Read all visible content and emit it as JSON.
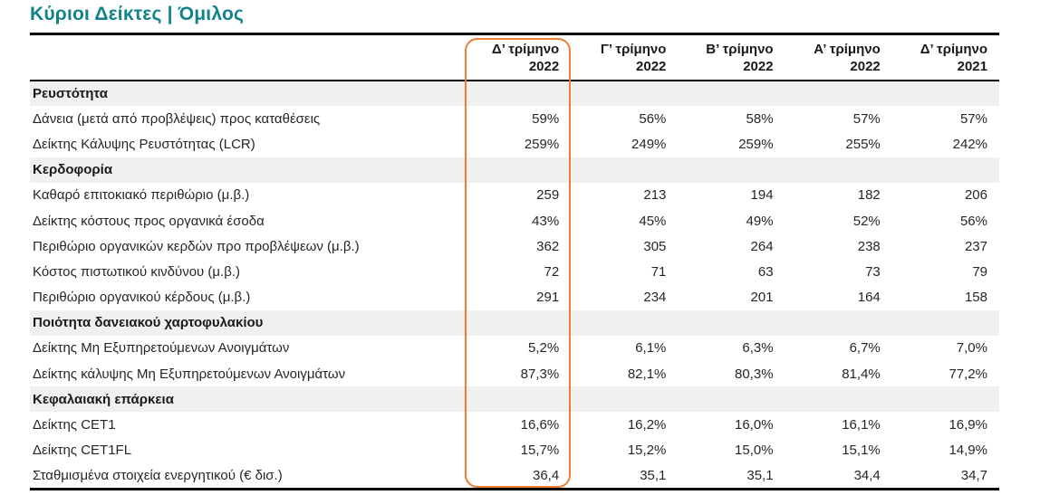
{
  "page": {
    "title": "Κύριοι Δείκτες | Όμιλος"
  },
  "colors": {
    "title_teal": "#11818B",
    "highlight_orange": "#ED7D31",
    "section_row_bg": "#F0F0F0",
    "rule_black": "#000000",
    "body_text": "#262626"
  },
  "table": {
    "columns": [
      {
        "period": "Δ’ τρίμηνο",
        "year": "2022"
      },
      {
        "period": "Γ’ τρίμηνο",
        "year": "2022"
      },
      {
        "period": "Β’ τρίμηνο",
        "year": "2022"
      },
      {
        "period": "Α’ τρίμηνο",
        "year": "2022"
      },
      {
        "period": "Δ’ τρίμηνο",
        "year": "2021"
      }
    ],
    "highlighted_column": "Δ’ τρίμηνο 2022",
    "rows": [
      {
        "type": "section",
        "label": "Ρευστότητα"
      },
      {
        "type": "data",
        "label": "Δάνεια (μετά από προβλέψεις) προς καταθέσεις",
        "values": [
          "59%",
          "56%",
          "58%",
          "57%",
          "57%"
        ]
      },
      {
        "type": "data",
        "label": "Δείκτης Κάλυψης Ρευστότητας (LCR)",
        "values": [
          "259%",
          "249%",
          "259%",
          "255%",
          "242%"
        ]
      },
      {
        "type": "section",
        "label": "Κερδοφορία"
      },
      {
        "type": "data",
        "label": "Καθαρό επιτοκιακό περιθώριο (μ.β.)",
        "values": [
          "259",
          "213",
          "194",
          "182",
          "206"
        ]
      },
      {
        "type": "data",
        "label": "Δείκτης κόστους προς οργανικά έσοδα",
        "values": [
          "43%",
          "45%",
          "49%",
          "52%",
          "56%"
        ]
      },
      {
        "type": "data",
        "label": "Περιθώριο οργανικών κερδών προ προβλέψεων (μ.β.)",
        "values": [
          "362",
          "305",
          "264",
          "238",
          "237"
        ]
      },
      {
        "type": "data",
        "label": "Κόστος πιστωτικού κινδύνου (μ.β.)",
        "values": [
          "72",
          "71",
          "63",
          "73",
          "79"
        ]
      },
      {
        "type": "data",
        "label": "Περιθώριο οργανικού κέρδους (μ.β.)",
        "values": [
          "291",
          "234",
          "201",
          "164",
          "158"
        ]
      },
      {
        "type": "section",
        "label": "Ποιότητα δανειακού χαρτοφυλακίου"
      },
      {
        "type": "data",
        "label": "Δείκτης Μη Εξυπηρετούμενων Ανοιγμάτων",
        "values": [
          "5,2%",
          "6,1%",
          "6,3%",
          "6,7%",
          "7,0%"
        ]
      },
      {
        "type": "data",
        "label": "Δείκτης κάλυψης Μη Εξυπηρετούμενων Ανοιγμάτων",
        "values": [
          "87,3%",
          "82,1%",
          "80,3%",
          "81,4%",
          "77,2%"
        ]
      },
      {
        "type": "section",
        "label": "Κεφαλαιακή επάρκεια"
      },
      {
        "type": "data",
        "label": "Δείκτης CET1",
        "values": [
          "16,6%",
          "16,2%",
          "16,0%",
          "16,1%",
          "16,9%"
        ]
      },
      {
        "type": "data",
        "label": "Δείκτης CET1FL",
        "values": [
          "15,7%",
          "15,2%",
          "15,0%",
          "15,1%",
          "14,9%"
        ]
      },
      {
        "type": "data",
        "label": "Σταθμισμένα στοιχεία ενεργητικού (€ δισ.)",
        "values": [
          "36,4",
          "35,1",
          "35,1",
          "34,4",
          "34,7"
        ]
      }
    ]
  }
}
